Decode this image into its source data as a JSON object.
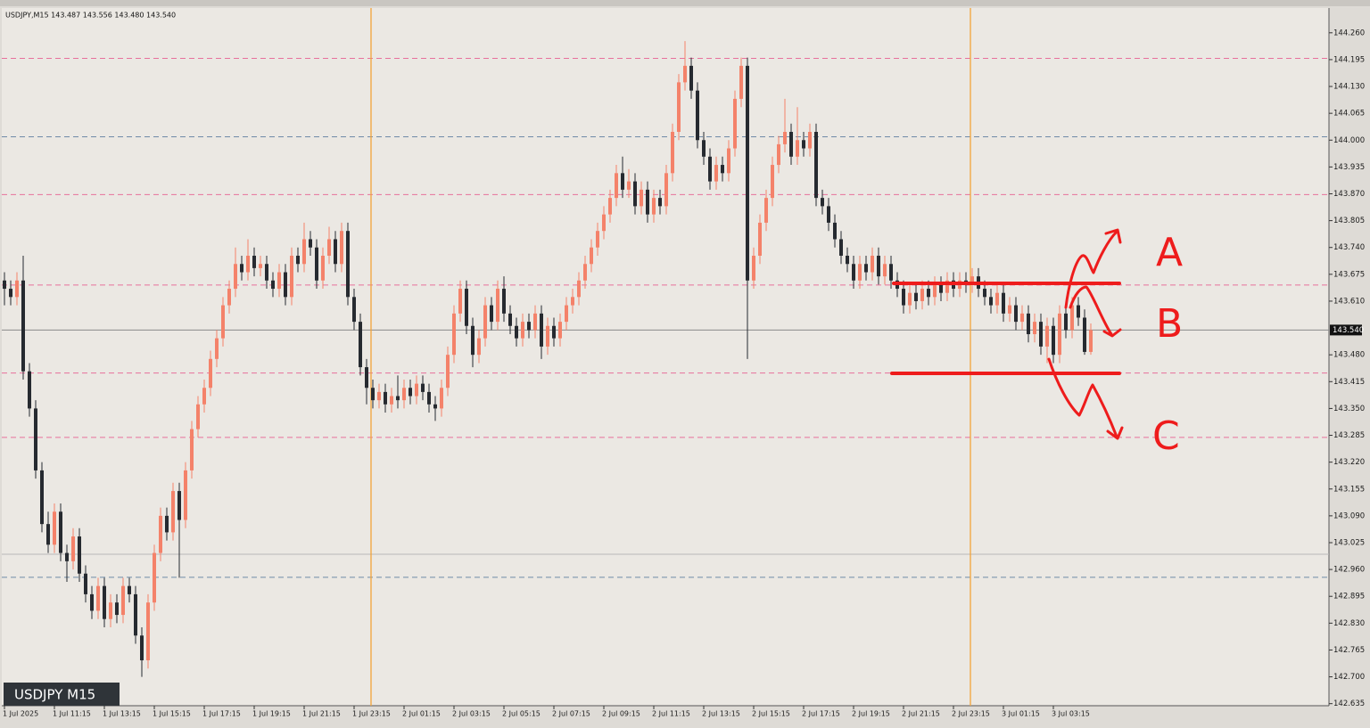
{
  "chart_data": {
    "type": "candlestick",
    "header": "USDJPY,M15 143.487 143.556 143.480 143.540",
    "symbol_label": "USDJPY M15",
    "annotations": [
      "A",
      "B",
      "C"
    ],
    "up_color": "#f4826a",
    "down_color": "#262a30",
    "ylim": [
      142.63,
      144.32
    ],
    "yticks": [
      {
        "value": 144.26,
        "label": "144.260"
      },
      {
        "value": 144.195,
        "label": "144.195"
      },
      {
        "value": 144.13,
        "label": "144.130"
      },
      {
        "value": 144.065,
        "label": "144.065"
      },
      {
        "value": 144.0,
        "label": "144.000"
      },
      {
        "value": 143.935,
        "label": "143.935"
      },
      {
        "value": 143.87,
        "label": "143.870"
      },
      {
        "value": 143.805,
        "label": "143.805"
      },
      {
        "value": 143.74,
        "label": "143.740"
      },
      {
        "value": 143.675,
        "label": "143.675"
      },
      {
        "value": 143.61,
        "label": "143.610"
      },
      {
        "value": 143.48,
        "label": "143.480"
      },
      {
        "value": 143.415,
        "label": "143.415"
      },
      {
        "value": 143.35,
        "label": "143.350"
      },
      {
        "value": 143.285,
        "label": "143.285"
      },
      {
        "value": 143.22,
        "label": "143.220"
      },
      {
        "value": 143.155,
        "label": "143.155"
      },
      {
        "value": 143.09,
        "label": "143.090"
      },
      {
        "value": 143.025,
        "label": "143.025"
      },
      {
        "value": 142.96,
        "label": "142.960"
      },
      {
        "value": 142.895,
        "label": "142.895"
      },
      {
        "value": 142.83,
        "label": "142.830"
      },
      {
        "value": 142.765,
        "label": "142.765"
      },
      {
        "value": 142.7,
        "label": "142.700"
      },
      {
        "value": 142.635,
        "label": "142.635"
      }
    ],
    "current_price": {
      "value": 143.54,
      "label": "143.540"
    },
    "levels": [
      {
        "value": 144.198,
        "color": "#e8709c",
        "dash": true
      },
      {
        "value": 143.868,
        "color": "#e8709c",
        "dash": true
      },
      {
        "value": 143.649,
        "color": "#e8709c",
        "dash": true
      },
      {
        "value": 143.436,
        "color": "#e8709c",
        "dash": true
      },
      {
        "value": 143.28,
        "color": "#e8709c",
        "dash": true
      },
      {
        "value": 144.008,
        "color": "#6f8aa8",
        "dash": true
      },
      {
        "value": 142.941,
        "color": "#6f8aa8",
        "dash": true
      },
      {
        "value": 142.997,
        "color": "#b8b8b8",
        "dash": false
      },
      {
        "value": 143.54,
        "color": "#8a8a8a",
        "dash": false
      }
    ],
    "categories": [
      "1 Jul 2025",
      null,
      null,
      null,
      null,
      null,
      null,
      null,
      "1 Jul 11:15",
      null,
      null,
      null,
      null,
      null,
      null,
      null,
      "1 Jul 13:15",
      null,
      null,
      null,
      null,
      null,
      null,
      null,
      "1 Jul 15:15",
      null,
      null,
      null,
      null,
      null,
      null,
      null,
      "1 Jul 17:15",
      null,
      null,
      null,
      null,
      null,
      null,
      null,
      "1 Jul 19:15",
      null,
      null,
      null,
      null,
      null,
      null,
      null,
      "1 Jul 21:15",
      null,
      null,
      null,
      null,
      null,
      null,
      null,
      "1 Jul 23:15",
      null,
      null,
      null,
      null,
      null,
      null,
      null,
      "2 Jul 01:15",
      null,
      null,
      null,
      null,
      null,
      null,
      null,
      "2 Jul 03:15",
      null,
      null,
      null,
      null,
      null,
      null,
      null,
      "2 Jul 05:15",
      null,
      null,
      null,
      null,
      null,
      null,
      null,
      "2 Jul 07:15",
      null,
      null,
      null,
      null,
      null,
      null,
      null,
      "2 Jul 09:15",
      null,
      null,
      null,
      null,
      null,
      null,
      null,
      "2 Jul 11:15",
      null,
      null,
      null,
      null,
      null,
      null,
      null,
      "2 Jul 13:15",
      null,
      null,
      null,
      null,
      null,
      null,
      null,
      "2 Jul 15:15",
      null,
      null,
      null,
      null,
      null,
      null,
      null,
      "2 Jul 17:15",
      null,
      null,
      null,
      null,
      null,
      null,
      null,
      "2 Jul 19:15",
      null,
      null,
      null,
      null,
      null,
      null,
      null,
      "2 Jul 21:15",
      null,
      null,
      null,
      null,
      null,
      null,
      null,
      "2 Jul 23:15",
      null,
      null,
      null,
      null,
      null,
      null,
      null,
      "3 Jul 01:15",
      null,
      null,
      null,
      null,
      null,
      null,
      null,
      "3 Jul 03:15",
      null,
      null,
      null,
      null,
      null,
      null
    ],
    "ohlc": [
      [
        143.66,
        143.68,
        143.6,
        143.64
      ],
      [
        143.64,
        143.66,
        143.6,
        143.62
      ],
      [
        143.62,
        143.68,
        143.6,
        143.66
      ],
      [
        143.66,
        143.72,
        143.42,
        143.44
      ],
      [
        143.44,
        143.46,
        143.33,
        143.35
      ],
      [
        143.35,
        143.37,
        143.18,
        143.2
      ],
      [
        143.2,
        143.22,
        143.05,
        143.07
      ],
      [
        143.07,
        143.1,
        143.0,
        143.02
      ],
      [
        143.02,
        143.12,
        143.0,
        143.1
      ],
      [
        143.1,
        143.12,
        142.98,
        143.0
      ],
      [
        143.0,
        143.02,
        142.93,
        142.98
      ],
      [
        142.98,
        143.06,
        142.96,
        143.04
      ],
      [
        143.04,
        143.06,
        142.93,
        142.95
      ],
      [
        142.95,
        142.97,
        142.88,
        142.9
      ],
      [
        142.9,
        142.92,
        142.84,
        142.86
      ],
      [
        142.86,
        142.94,
        142.84,
        142.92
      ],
      [
        142.92,
        142.94,
        142.82,
        142.84
      ],
      [
        142.84,
        142.9,
        142.82,
        142.88
      ],
      [
        142.88,
        142.9,
        142.83,
        142.85
      ],
      [
        142.85,
        142.94,
        142.83,
        142.92
      ],
      [
        142.92,
        142.94,
        142.88,
        142.9
      ],
      [
        142.9,
        142.92,
        142.78,
        142.8
      ],
      [
        142.8,
        142.82,
        142.7,
        142.74
      ],
      [
        142.74,
        142.9,
        142.72,
        142.88
      ],
      [
        142.88,
        143.02,
        142.86,
        143.0
      ],
      [
        143.0,
        143.11,
        142.98,
        143.09
      ],
      [
        143.09,
        143.11,
        143.03,
        143.05
      ],
      [
        143.05,
        143.17,
        143.03,
        143.15
      ],
      [
        143.15,
        143.17,
        142.94,
        143.08
      ],
      [
        143.08,
        143.22,
        143.06,
        143.2
      ],
      [
        143.2,
        143.32,
        143.18,
        143.3
      ],
      [
        143.3,
        143.38,
        143.28,
        143.36
      ],
      [
        143.36,
        143.42,
        143.34,
        143.4
      ],
      [
        143.4,
        143.49,
        143.38,
        143.47
      ],
      [
        143.47,
        143.54,
        143.45,
        143.52
      ],
      [
        143.52,
        143.62,
        143.5,
        143.6
      ],
      [
        143.6,
        143.66,
        143.58,
        143.64
      ],
      [
        143.64,
        143.74,
        143.62,
        143.7
      ],
      [
        143.7,
        143.72,
        143.66,
        143.68
      ],
      [
        143.68,
        143.76,
        143.66,
        143.72
      ],
      [
        143.72,
        143.74,
        143.67,
        143.69
      ],
      [
        143.69,
        143.72,
        143.67,
        143.7
      ],
      [
        143.7,
        143.72,
        143.64,
        143.66
      ],
      [
        143.66,
        143.68,
        143.62,
        143.64
      ],
      [
        143.64,
        143.7,
        143.62,
        143.68
      ],
      [
        143.68,
        143.7,
        143.6,
        143.62
      ],
      [
        143.62,
        143.74,
        143.6,
        143.72
      ],
      [
        143.72,
        143.74,
        143.68,
        143.7
      ],
      [
        143.7,
        143.8,
        143.68,
        143.76
      ],
      [
        143.76,
        143.78,
        143.72,
        143.74
      ],
      [
        143.74,
        143.76,
        143.64,
        143.66
      ],
      [
        143.66,
        143.74,
        143.64,
        143.72
      ],
      [
        143.72,
        143.79,
        143.7,
        143.76
      ],
      [
        143.76,
        143.78,
        143.68,
        143.7
      ],
      [
        143.7,
        143.8,
        143.68,
        143.78
      ],
      [
        143.78,
        143.8,
        143.6,
        143.62
      ],
      [
        143.62,
        143.64,
        143.54,
        143.56
      ],
      [
        143.56,
        143.58,
        143.43,
        143.45
      ],
      [
        143.45,
        143.47,
        143.36,
        143.4
      ],
      [
        143.4,
        143.42,
        143.35,
        143.37
      ],
      [
        143.37,
        143.41,
        143.35,
        143.39
      ],
      [
        143.39,
        143.41,
        143.34,
        143.36
      ],
      [
        143.36,
        143.4,
        143.34,
        143.38
      ],
      [
        143.38,
        143.43,
        143.35,
        143.37
      ],
      [
        143.37,
        143.42,
        143.35,
        143.4
      ],
      [
        143.4,
        143.42,
        143.36,
        143.38
      ],
      [
        143.38,
        143.43,
        143.36,
        143.41
      ],
      [
        143.41,
        143.43,
        143.37,
        143.39
      ],
      [
        143.39,
        143.41,
        143.34,
        143.36
      ],
      [
        143.36,
        143.38,
        143.32,
        143.35
      ],
      [
        143.35,
        143.42,
        143.33,
        143.4
      ],
      [
        143.4,
        143.5,
        143.38,
        143.48
      ],
      [
        143.48,
        143.6,
        143.46,
        143.58
      ],
      [
        143.58,
        143.66,
        143.56,
        143.64
      ],
      [
        143.64,
        143.66,
        143.53,
        143.55
      ],
      [
        143.55,
        143.57,
        143.45,
        143.48
      ],
      [
        143.48,
        143.54,
        143.46,
        143.52
      ],
      [
        143.52,
        143.62,
        143.5,
        143.6
      ],
      [
        143.6,
        143.62,
        143.54,
        143.56
      ],
      [
        143.56,
        143.66,
        143.54,
        143.64
      ],
      [
        143.64,
        143.67,
        143.56,
        143.58
      ],
      [
        143.58,
        143.6,
        143.53,
        143.55
      ],
      [
        143.55,
        143.57,
        143.5,
        143.52
      ],
      [
        143.52,
        143.58,
        143.5,
        143.56
      ],
      [
        143.56,
        143.58,
        143.52,
        143.54
      ],
      [
        143.54,
        143.6,
        143.52,
        143.58
      ],
      [
        143.58,
        143.6,
        143.47,
        143.5
      ],
      [
        143.5,
        143.57,
        143.48,
        143.55
      ],
      [
        143.55,
        143.57,
        143.5,
        143.52
      ],
      [
        143.52,
        143.58,
        143.5,
        143.56
      ],
      [
        143.56,
        143.62,
        143.54,
        143.6
      ],
      [
        143.6,
        143.64,
        143.58,
        143.62
      ],
      [
        143.62,
        143.68,
        143.6,
        143.66
      ],
      [
        143.66,
        143.72,
        143.64,
        143.7
      ],
      [
        143.7,
        143.76,
        143.68,
        143.74
      ],
      [
        143.74,
        143.8,
        143.72,
        143.78
      ],
      [
        143.78,
        143.84,
        143.76,
        143.82
      ],
      [
        143.82,
        143.88,
        143.8,
        143.86
      ],
      [
        143.86,
        143.94,
        143.84,
        143.92
      ],
      [
        143.92,
        143.96,
        143.86,
        143.88
      ],
      [
        143.88,
        143.93,
        143.86,
        143.9
      ],
      [
        143.9,
        143.92,
        143.82,
        143.84
      ],
      [
        143.84,
        143.9,
        143.82,
        143.88
      ],
      [
        143.88,
        143.9,
        143.8,
        143.82
      ],
      [
        143.82,
        143.88,
        143.8,
        143.86
      ],
      [
        143.86,
        143.88,
        143.82,
        143.84
      ],
      [
        143.84,
        143.94,
        143.82,
        143.92
      ],
      [
        143.92,
        144.04,
        143.9,
        144.02
      ],
      [
        144.02,
        144.16,
        144.0,
        144.14
      ],
      [
        144.14,
        144.24,
        144.12,
        144.18
      ],
      [
        144.18,
        144.2,
        144.1,
        144.12
      ],
      [
        144.12,
        144.14,
        143.98,
        144.0
      ],
      [
        144.0,
        144.02,
        143.94,
        143.96
      ],
      [
        143.96,
        143.98,
        143.88,
        143.9
      ],
      [
        143.9,
        143.96,
        143.88,
        143.94
      ],
      [
        143.94,
        143.96,
        143.9,
        143.92
      ],
      [
        143.92,
        144.0,
        143.9,
        143.98
      ],
      [
        143.98,
        144.12,
        143.96,
        144.1
      ],
      [
        144.1,
        144.2,
        144.08,
        144.18
      ],
      [
        144.18,
        144.2,
        143.47,
        143.66
      ],
      [
        143.66,
        143.74,
        143.64,
        143.72
      ],
      [
        143.72,
        143.82,
        143.7,
        143.8
      ],
      [
        143.8,
        143.88,
        143.78,
        143.86
      ],
      [
        143.86,
        143.96,
        143.84,
        143.94
      ],
      [
        143.94,
        144.01,
        143.92,
        143.99
      ],
      [
        143.99,
        144.1,
        143.97,
        144.02
      ],
      [
        144.02,
        144.04,
        143.94,
        143.96
      ],
      [
        143.96,
        144.08,
        143.94,
        144.0
      ],
      [
        144.0,
        144.02,
        143.96,
        143.98
      ],
      [
        143.98,
        144.04,
        143.96,
        144.02
      ],
      [
        144.02,
        144.04,
        143.84,
        143.86
      ],
      [
        143.86,
        143.88,
        143.82,
        143.84
      ],
      [
        143.84,
        143.86,
        143.78,
        143.8
      ],
      [
        143.8,
        143.82,
        143.74,
        143.76
      ],
      [
        143.76,
        143.78,
        143.7,
        143.72
      ],
      [
        143.72,
        143.74,
        143.68,
        143.7
      ],
      [
        143.7,
        143.72,
        143.64,
        143.66
      ],
      [
        143.66,
        143.72,
        143.64,
        143.7
      ],
      [
        143.7,
        143.72,
        143.66,
        143.68
      ],
      [
        143.68,
        143.74,
        143.66,
        143.72
      ],
      [
        143.72,
        143.74,
        143.65,
        143.67
      ],
      [
        143.67,
        143.72,
        143.65,
        143.7
      ],
      [
        143.7,
        143.72,
        143.64,
        143.66
      ],
      [
        143.66,
        143.68,
        143.62,
        143.64
      ],
      [
        143.64,
        143.66,
        143.58,
        143.6
      ],
      [
        143.6,
        143.65,
        143.58,
        143.63
      ],
      [
        143.63,
        143.65,
        143.59,
        143.61
      ],
      [
        143.61,
        143.66,
        143.59,
        143.64
      ],
      [
        143.64,
        143.66,
        143.6,
        143.62
      ],
      [
        143.62,
        143.67,
        143.6,
        143.65
      ],
      [
        143.65,
        143.67,
        143.61,
        143.63
      ],
      [
        143.63,
        143.68,
        143.61,
        143.66
      ],
      [
        143.66,
        143.68,
        143.62,
        143.64
      ],
      [
        143.64,
        143.68,
        143.62,
        143.66
      ],
      [
        143.66,
        143.68,
        143.63,
        143.65
      ],
      [
        143.65,
        143.69,
        143.63,
        143.67
      ],
      [
        143.67,
        143.69,
        143.62,
        143.64
      ],
      [
        143.64,
        143.66,
        143.6,
        143.62
      ],
      [
        143.62,
        143.64,
        143.58,
        143.6
      ],
      [
        143.6,
        143.65,
        143.58,
        143.63
      ],
      [
        143.63,
        143.65,
        143.56,
        143.58
      ],
      [
        143.58,
        143.62,
        143.56,
        143.6
      ],
      [
        143.6,
        143.62,
        143.54,
        143.56
      ],
      [
        143.56,
        143.6,
        143.54,
        143.58
      ],
      [
        143.58,
        143.6,
        143.51,
        143.53
      ],
      [
        143.53,
        143.58,
        143.51,
        143.56
      ],
      [
        143.56,
        143.58,
        143.48,
        143.5
      ],
      [
        143.5,
        143.57,
        143.46,
        143.55
      ],
      [
        143.55,
        143.57,
        143.46,
        143.48
      ],
      [
        143.48,
        143.6,
        143.46,
        143.58
      ],
      [
        143.58,
        143.6,
        143.52,
        143.54
      ],
      [
        143.54,
        143.62,
        143.52,
        143.6
      ],
      [
        143.6,
        143.62,
        143.55,
        143.57
      ],
      [
        143.57,
        143.59,
        143.48,
        143.487
      ],
      [
        143.487,
        143.556,
        143.48,
        143.54
      ]
    ]
  }
}
